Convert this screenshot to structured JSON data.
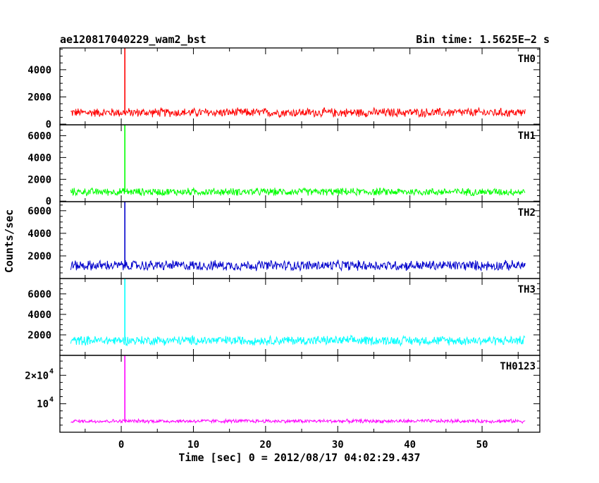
{
  "chart_data": {
    "type": "line",
    "title": "ae120817040229_wam2_bst",
    "subtitle": "Bin time: 1.5625E−2 s",
    "xlabel": "Time [sec] 0 = 2012/08/17 04:02:29.437",
    "ylabel": "Counts/sec",
    "xlim": [
      -8.5,
      58
    ],
    "data_xrange": [
      -7,
      56
    ],
    "x_ticks": [
      0,
      10,
      20,
      30,
      40,
      50
    ],
    "x_tick_labels": [
      "0",
      "10",
      "20",
      "30",
      "40",
      "50"
    ],
    "panels": [
      {
        "name": "TH0",
        "color": "#ff0000",
        "ylim": [
          -50,
          5600
        ],
        "y_ticks": [
          0,
          2000,
          4000
        ],
        "y_tick_labels": [
          "0",
          "2000",
          "4000"
        ],
        "baseline": 850,
        "noise_amplitude": 380,
        "spike": {
          "x": 0.5,
          "y": 5600
        },
        "series": [
          [
            -7,
            860
          ],
          [
            -3,
            900
          ],
          [
            0,
            1000
          ],
          [
            0.5,
            5600
          ],
          [
            1,
            950
          ],
          [
            10,
            900
          ],
          [
            20,
            900
          ],
          [
            30,
            880
          ],
          [
            40,
            870
          ],
          [
            50,
            880
          ],
          [
            56,
            860
          ]
        ]
      },
      {
        "name": "TH1",
        "color": "#00ff00",
        "ylim": [
          -50,
          7000
        ],
        "y_ticks": [
          0,
          2000,
          4000,
          6000
        ],
        "y_tick_labels": [
          "0",
          "2000",
          "4000",
          "6000"
        ],
        "baseline": 850,
        "noise_amplitude": 400,
        "spike": {
          "x": 0.5,
          "y": 7000
        },
        "series": [
          [
            -7,
            860
          ],
          [
            0,
            950
          ],
          [
            0.5,
            7000
          ],
          [
            1,
            1100
          ],
          [
            10,
            900
          ],
          [
            20,
            900
          ],
          [
            30,
            890
          ],
          [
            40,
            880
          ],
          [
            50,
            870
          ],
          [
            56,
            860
          ]
        ]
      },
      {
        "name": "TH2",
        "color": "#0000cc",
        "ylim": [
          0,
          6800
        ],
        "y_ticks": [
          2000,
          4000,
          6000
        ],
        "y_tick_labels": [
          "2000",
          "4000",
          "6000"
        ],
        "baseline": 1150,
        "noise_amplitude": 520,
        "spike": {
          "x": 0.5,
          "y": 6800
        },
        "series": [
          [
            -7,
            1150
          ],
          [
            0,
            1300
          ],
          [
            0.5,
            6800
          ],
          [
            1,
            1200
          ],
          [
            10,
            1200
          ],
          [
            20,
            1250
          ],
          [
            30,
            1200
          ],
          [
            40,
            1180
          ],
          [
            50,
            1200
          ],
          [
            56,
            1150
          ]
        ]
      },
      {
        "name": "TH3",
        "color": "#00ffff",
        "ylim": [
          0,
          7500
        ],
        "y_ticks": [
          2000,
          4000,
          6000
        ],
        "y_tick_labels": [
          "2000",
          "4000",
          "6000"
        ],
        "baseline": 1450,
        "noise_amplitude": 520,
        "spike": {
          "x": 0.5,
          "y": 7500
        },
        "series": [
          [
            -7,
            1450
          ],
          [
            0,
            1500
          ],
          [
            0.5,
            7500
          ],
          [
            1,
            1500
          ],
          [
            10,
            1500
          ],
          [
            20,
            1550
          ],
          [
            30,
            1520
          ],
          [
            40,
            1500
          ],
          [
            50,
            1500
          ],
          [
            56,
            1450
          ]
        ]
      },
      {
        "name": "TH0123",
        "color": "#ff00ff",
        "ylim": [
          0,
          27000
        ],
        "y_ticks": [
          10000,
          20000
        ],
        "y_tick_labels": [
          [
            "10",
            "4"
          ],
          [
            "2×10",
            "4"
          ]
        ],
        "baseline": 3900,
        "noise_amplitude": 750,
        "spike": {
          "x": 0.5,
          "y": 27000
        },
        "series": [
          [
            -7,
            3900
          ],
          [
            0,
            4200
          ],
          [
            0.5,
            27000
          ],
          [
            1,
            4000
          ],
          [
            10,
            4000
          ],
          [
            20,
            4050
          ],
          [
            30,
            4000
          ],
          [
            40,
            3950
          ],
          [
            50,
            3950
          ],
          [
            56,
            3900
          ]
        ]
      }
    ]
  }
}
